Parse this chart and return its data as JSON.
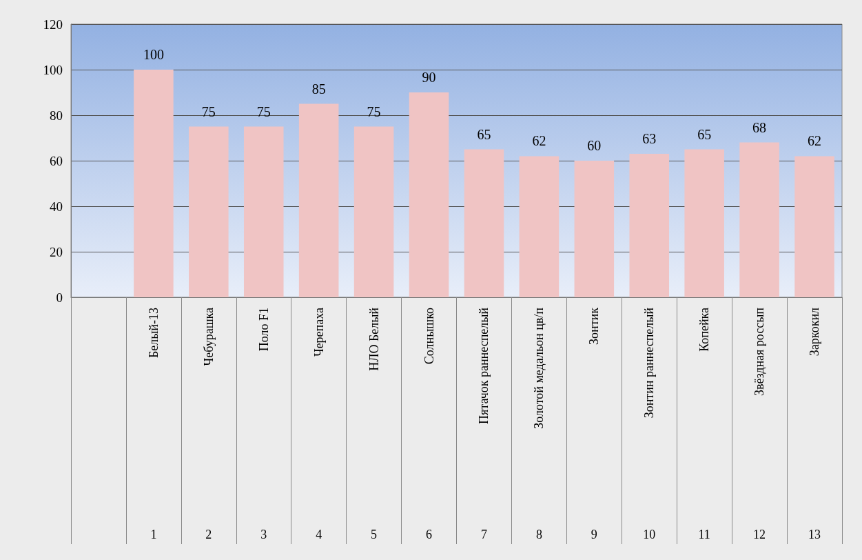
{
  "chart_data": {
    "type": "bar",
    "categories": [
      null,
      "Белый-13",
      "Чебурашка",
      "Поло F1",
      "Черепаха",
      "НЛО Белый",
      "Солнышко",
      "Пятачок раннеспелый",
      "Золотой медальон цв/п",
      "Зонтик",
      "Зонтин раннеспелый",
      "Копейка",
      "Звёздная россып",
      "Заркокил"
    ],
    "values": [
      null,
      100,
      75,
      75,
      85,
      75,
      90,
      65,
      62,
      60,
      63,
      65,
      68,
      62
    ],
    "color": "#f0c4c4",
    "ylim": [
      0,
      120
    ],
    "yticks": [
      0,
      20,
      40,
      60,
      80,
      100,
      120
    ],
    "grid": "y",
    "data_labels": true,
    "annotations": [
      "1",
      "2",
      "3",
      "4",
      "5",
      "6",
      "7",
      "8",
      "9",
      "10",
      "11",
      "12",
      "13"
    ]
  }
}
